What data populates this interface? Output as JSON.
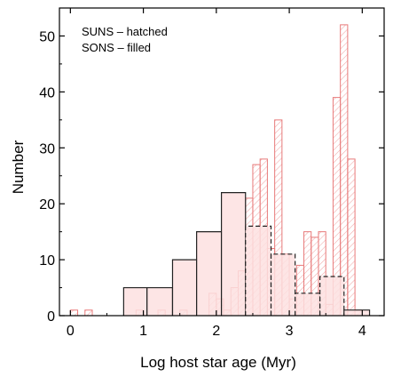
{
  "chart_data": {
    "type": "bar",
    "title": "",
    "xlabel": "Log host star age (Myr)",
    "ylabel": "Number",
    "xlim": [
      -0.15,
      4.3
    ],
    "ylim": [
      0,
      55
    ],
    "x_ticks": [
      0,
      1,
      2,
      3,
      4
    ],
    "x_tick_labels": [
      "0",
      "1",
      "2",
      "3",
      "4"
    ],
    "y_ticks": [
      0,
      10,
      20,
      30,
      40,
      50
    ],
    "y_tick_labels": [
      "0",
      "10",
      "20",
      "30",
      "40",
      "50"
    ],
    "annotations": [
      "SUNS – hatched",
      "SONS – filled"
    ],
    "colors": {
      "suns": "#e87a7a",
      "sons_fill": "#fde0e0",
      "sons_edge": "#222222"
    },
    "series": [
      {
        "name": "SUNS",
        "style": "hatched",
        "bin_width": 0.1,
        "bins": [
          {
            "x0": 0.0,
            "v": 1
          },
          {
            "x0": 0.2,
            "v": 1
          },
          {
            "x0": 0.5,
            "v": 0
          },
          {
            "x0": 0.9,
            "v": 1
          },
          {
            "x0": 1.2,
            "v": 1
          },
          {
            "x0": 1.5,
            "v": 1
          },
          {
            "x0": 1.9,
            "v": 4
          },
          {
            "x0": 2.0,
            "v": 3
          },
          {
            "x0": 2.1,
            "v": 1
          },
          {
            "x0": 2.2,
            "v": 5
          },
          {
            "x0": 2.3,
            "v": 8
          },
          {
            "x0": 2.4,
            "v": 21
          },
          {
            "x0": 2.5,
            "v": 27
          },
          {
            "x0": 2.6,
            "v": 28
          },
          {
            "x0": 2.7,
            "v": 12
          },
          {
            "x0": 2.8,
            "v": 35
          },
          {
            "x0": 2.9,
            "v": 11
          },
          {
            "x0": 3.0,
            "v": 3
          },
          {
            "x0": 3.1,
            "v": 9
          },
          {
            "x0": 3.2,
            "v": 15
          },
          {
            "x0": 3.3,
            "v": 14
          },
          {
            "x0": 3.4,
            "v": 15
          },
          {
            "x0": 3.5,
            "v": 2
          },
          {
            "x0": 3.6,
            "v": 39
          },
          {
            "x0": 3.7,
            "v": 52
          },
          {
            "x0": 3.8,
            "v": 28
          },
          {
            "x0": 3.9,
            "v": 1
          }
        ]
      },
      {
        "name": "SONS",
        "style": "filled",
        "bins": [
          {
            "x0": 0.73,
            "x1": 1.05,
            "v": 5
          },
          {
            "x0": 1.05,
            "x1": 1.4,
            "v": 5
          },
          {
            "x0": 1.4,
            "x1": 1.73,
            "v": 10
          },
          {
            "x0": 1.73,
            "x1": 2.07,
            "v": 15
          },
          {
            "x0": 2.07,
            "x1": 2.4,
            "v": 22
          },
          {
            "x0": 2.4,
            "x1": 2.75,
            "v": 16
          },
          {
            "x0": 2.75,
            "x1": 3.08,
            "v": 11
          },
          {
            "x0": 3.08,
            "x1": 3.42,
            "v": 4
          },
          {
            "x0": 3.42,
            "x1": 3.75,
            "v": 7
          },
          {
            "x0": 3.75,
            "x1": 4.1,
            "v": 1
          }
        ]
      }
    ]
  }
}
